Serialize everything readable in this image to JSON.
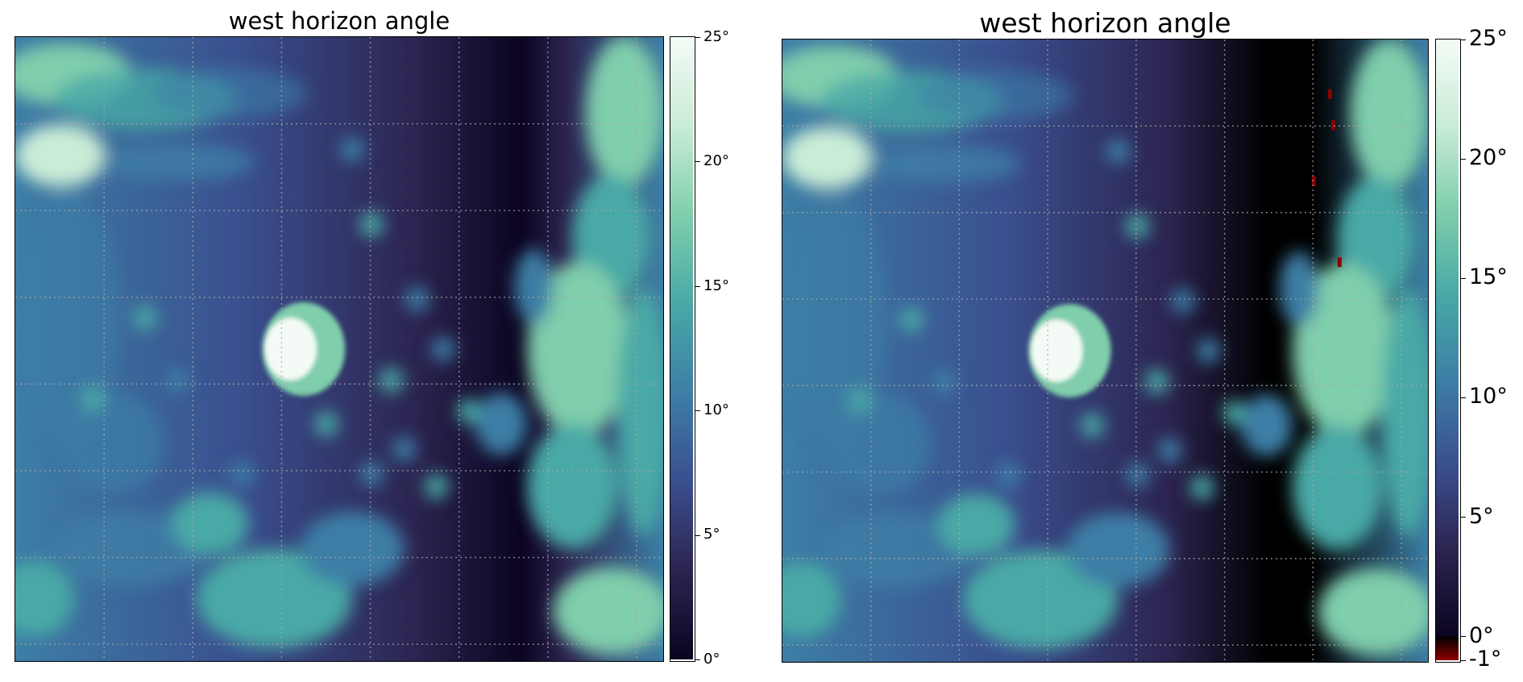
{
  "chart_data": [
    {
      "type": "heatmap",
      "title": "west horizon angle",
      "colormap": "mako_r (dark navy to light mint)",
      "colors": [
        "#0b0420",
        "#2c2450",
        "#3a4f8e",
        "#3d7ea6",
        "#48a9a6",
        "#7fceac",
        "#c9ecd6",
        "#f4fbf6"
      ],
      "clim": [
        0,
        25
      ],
      "colorbar_ticks": [
        "0°",
        "5°",
        "10°",
        "15°",
        "20°",
        "25°"
      ],
      "grid": true,
      "grid_style": "dotted gray",
      "grid_lines": 7,
      "features": [
        "bright crater rim on left edge",
        "bright round feature near center-left",
        "bright ridges along right side",
        "bright blobs along bottom",
        "scattered small bright rocks"
      ]
    },
    {
      "type": "heatmap",
      "title": "west horizon angle",
      "colormap": "mako_r with red below 0",
      "colors": [
        "#8b0000",
        "#000000",
        "#0b0420",
        "#2c2450",
        "#3a4f8e",
        "#3d7ea6",
        "#48a9a6",
        "#7fceac",
        "#c9ecd6",
        "#f4fbf6"
      ],
      "clim": [
        -1,
        25
      ],
      "colorbar_ticks": [
        "-1°",
        "0°",
        "5°",
        "10°",
        "15°",
        "20°",
        "25°"
      ],
      "grid": true,
      "grid_style": "dotted gray",
      "grid_lines": 7,
      "features": [
        "dark shadow band near right side",
        "small red patches in the dark band",
        "bright round feature near center-left",
        "bright ridges along right side"
      ]
    }
  ]
}
